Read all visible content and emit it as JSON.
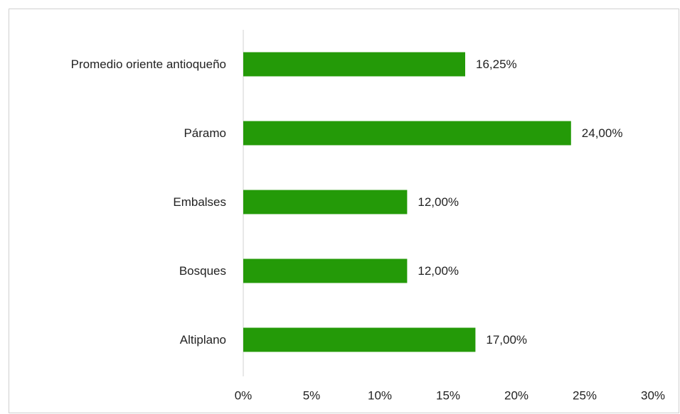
{
  "chart_data": {
    "type": "hbar",
    "categories": [
      "Promedio oriente antioqueño",
      "Páramo",
      "Embalses",
      "Bosques",
      "Altiplano"
    ],
    "values": [
      16.25,
      24,
      12,
      12,
      17
    ],
    "value_labels": [
      "16,25%",
      "24,00%",
      "12,00%",
      "12,00%",
      "17,00%"
    ],
    "color": "#249a08",
    "xlim": [
      0,
      30
    ],
    "xticks": [
      {
        "value": 0,
        "label": "0%"
      },
      {
        "value": 5,
        "label": "5%"
      },
      {
        "value": 10,
        "label": "10%"
      },
      {
        "value": 15,
        "label": "15%"
      },
      {
        "value": 20,
        "label": "20%"
      },
      {
        "value": 25,
        "label": "25%"
      },
      {
        "value": 30,
        "label": "30%"
      }
    ],
    "grid": false
  }
}
